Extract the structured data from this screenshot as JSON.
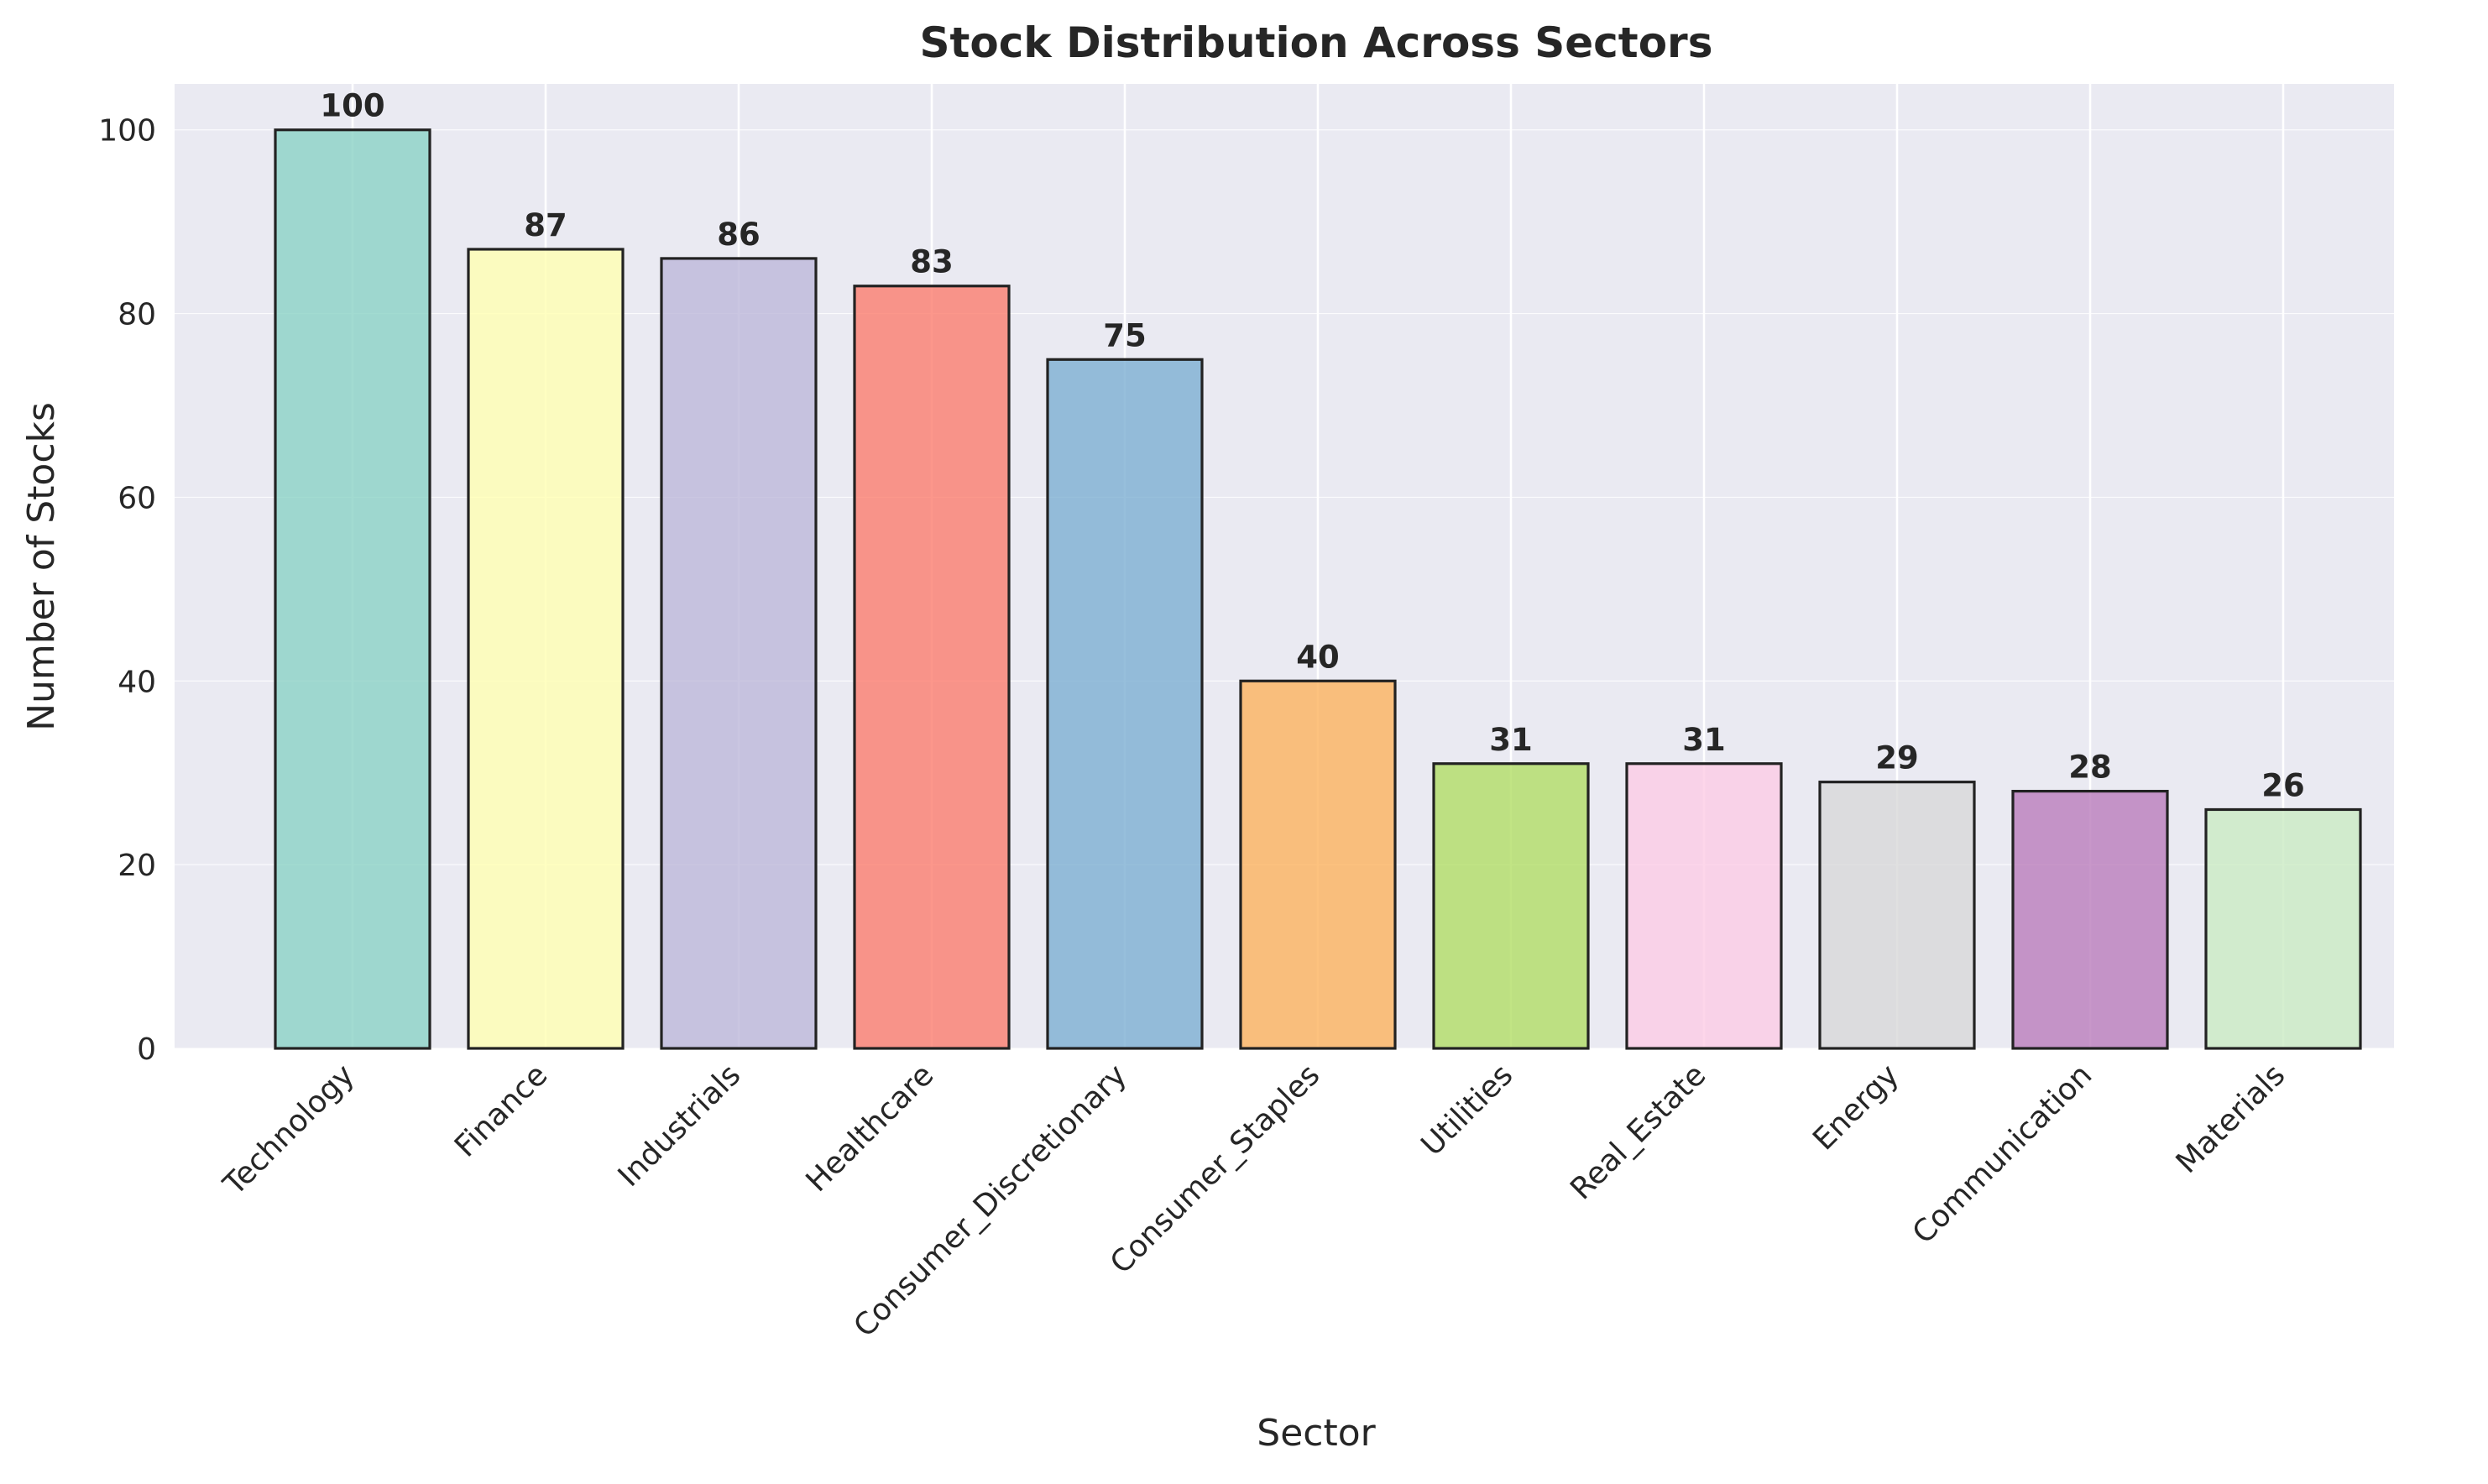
{
  "chart_data": {
    "type": "bar",
    "title": "Stock Distribution Across Sectors",
    "xlabel": "Sector",
    "ylabel": "Number of Stocks",
    "categories": [
      "Technology",
      "Finance",
      "Industrials",
      "Healthcare",
      "Consumer_Discretionary",
      "Consumer_Staples",
      "Utilities",
      "Real_Estate",
      "Energy",
      "Communication",
      "Materials"
    ],
    "values": [
      100,
      87,
      86,
      83,
      75,
      40,
      31,
      31,
      29,
      28,
      26
    ],
    "colors": [
      "#8dd3c7",
      "#ffffb3",
      "#bebada",
      "#fb8072",
      "#80b1d3",
      "#fdb462",
      "#b3de69",
      "#fccde5",
      "#d9d9d9",
      "#bc80bd",
      "#ccebc5"
    ],
    "ylim": [
      0,
      105
    ],
    "yticks": [
      0,
      20,
      40,
      60,
      80,
      100
    ],
    "grid": true,
    "legend": "none",
    "background_color": "#eaeaf2",
    "edge_color": "#222222"
  }
}
